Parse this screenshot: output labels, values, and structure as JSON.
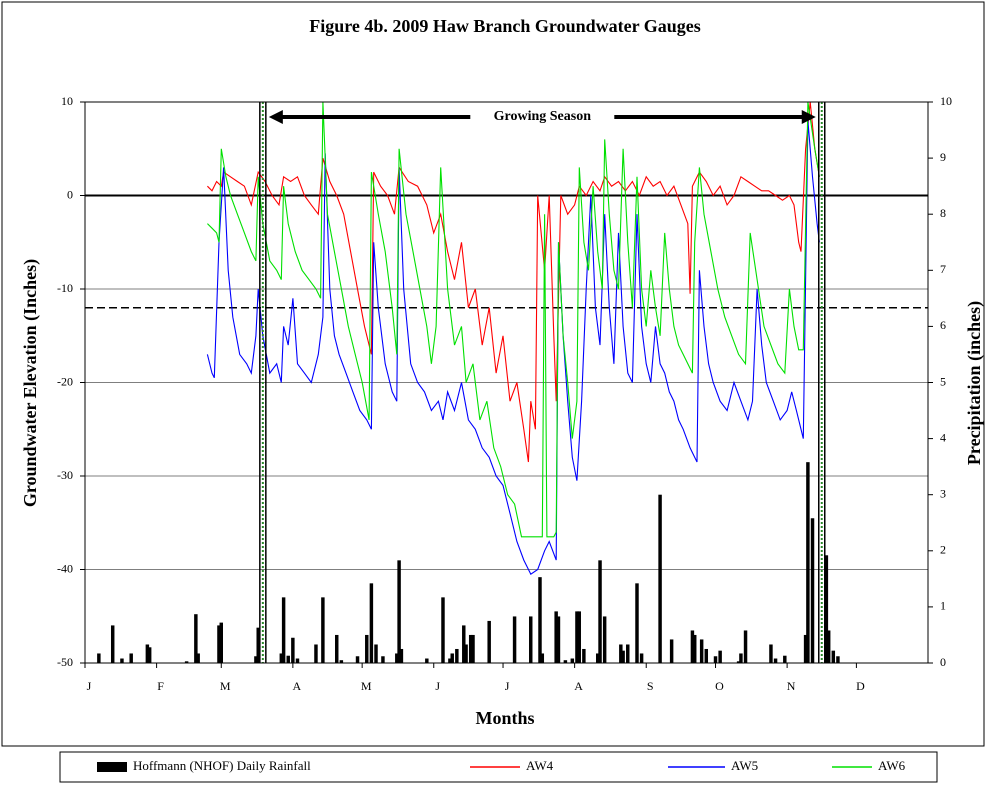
{
  "chart_data": {
    "type": "line",
    "title": "Figure 4b.  2009 Haw Branch Groundwater Gauges",
    "xlabel": "Months",
    "ylabel": "Groundwater Elevation (Inches)",
    "y2label": "Precipitation (inches)",
    "annotation": "Growing Season",
    "growing_season": [
      77,
      319
    ],
    "reference_lines": [
      0,
      -12
    ],
    "xlim": [
      0,
      365
    ],
    "xticks": [
      {
        "value": 0,
        "label": "J"
      },
      {
        "value": 31,
        "label": "F"
      },
      {
        "value": 59,
        "label": "M"
      },
      {
        "value": 90,
        "label": "A"
      },
      {
        "value": 120,
        "label": "M"
      },
      {
        "value": 151,
        "label": "J"
      },
      {
        "value": 181,
        "label": "J"
      },
      {
        "value": 212,
        "label": "A"
      },
      {
        "value": 243,
        "label": "S"
      },
      {
        "value": 273,
        "label": "O"
      },
      {
        "value": 304,
        "label": "N"
      },
      {
        "value": 334,
        "label": "D"
      }
    ],
    "ylim": [
      -50,
      10
    ],
    "yticks": [
      -50,
      -40,
      -30,
      -20,
      -10,
      0,
      10
    ],
    "y2lim": [
      0,
      10
    ],
    "y2ticks": [
      0,
      1,
      2,
      3,
      4,
      5,
      6,
      7,
      8,
      9,
      10
    ],
    "grid": true,
    "legend": "bottom",
    "series": [
      {
        "name": "Hoffmann (NHOF) Daily Rainfall",
        "type": "bar",
        "axis": "y2",
        "color": "#000000",
        "x": [
          6,
          12,
          16,
          20,
          27,
          28,
          44,
          48,
          49,
          58,
          59,
          74,
          75,
          85,
          86,
          88,
          90,
          92,
          100,
          103,
          109,
          111,
          118,
          122,
          124,
          126,
          129,
          135,
          136,
          137,
          148,
          155,
          158,
          159,
          161,
          164,
          165,
          167,
          168,
          175,
          186,
          193,
          197,
          198,
          204,
          205,
          208,
          211,
          213,
          214,
          216,
          222,
          223,
          225,
          232,
          233,
          235,
          239,
          241,
          249,
          254,
          263,
          264,
          267,
          269,
          273,
          275,
          283,
          284,
          286,
          297,
          299,
          303,
          312,
          313,
          315,
          321,
          322,
          324,
          326
        ],
        "values": [
          0.17,
          0.67,
          0.08,
          0.17,
          0.33,
          0.28,
          0.03,
          0.87,
          0.17,
          0.67,
          0.72,
          0.12,
          0.63,
          0.17,
          1.17,
          0.13,
          0.45,
          0.08,
          0.33,
          1.17,
          0.5,
          0.05,
          0.12,
          0.5,
          1.42,
          0.33,
          0.12,
          0.17,
          1.83,
          0.25,
          0.08,
          1.17,
          0.08,
          0.17,
          0.25,
          0.67,
          0.33,
          0.5,
          0.5,
          0.75,
          0.83,
          0.83,
          1.53,
          0.17,
          0.92,
          0.83,
          0.05,
          0.08,
          0.92,
          0.92,
          0.25,
          0.17,
          1.83,
          0.83,
          0.33,
          0.22,
          0.33,
          1.42,
          0.17,
          3.0,
          0.42,
          0.58,
          0.5,
          0.42,
          0.25,
          0.12,
          0.22,
          0.03,
          0.17,
          0.58,
          0.33,
          0.08,
          0.13,
          0.5,
          3.58,
          2.58,
          1.92,
          0.58,
          0.22,
          0.12
        ]
      },
      {
        "name": "AW4",
        "color": "#ff0000",
        "x": [
          53,
          55,
          57,
          59,
          60,
          63,
          66,
          69,
          72,
          75,
          78,
          81,
          84,
          86,
          89,
          92,
          95,
          98,
          101,
          103,
          106,
          109,
          112,
          115,
          118,
          121,
          124,
          125,
          128,
          131,
          134,
          136,
          140,
          144,
          148,
          151,
          154,
          157,
          160,
          163,
          166,
          169,
          172,
          175,
          178,
          181,
          184,
          187,
          190,
          192,
          193,
          195,
          196,
          199,
          201,
          203,
          204,
          206,
          209,
          212,
          214,
          217,
          220,
          223,
          225,
          228,
          231,
          234,
          237,
          240,
          243,
          246,
          249,
          252,
          255,
          258,
          261,
          262,
          263,
          266,
          269,
          272,
          275,
          278,
          281,
          284,
          287,
          290,
          293,
          296,
          299,
          302,
          305,
          307,
          309,
          310,
          312,
          314,
          316,
          318
        ],
        "values": [
          1,
          0.5,
          1.5,
          1,
          2.5,
          2,
          1.5,
          1,
          -1,
          2.5,
          1.5,
          0,
          -1,
          2,
          1.5,
          2,
          0,
          -1,
          -2,
          4,
          1.5,
          0,
          -2,
          -6,
          -10,
          -14,
          -17,
          2.5,
          1,
          0,
          -2,
          3,
          1.5,
          1,
          -1,
          -4,
          -2,
          -6,
          -9,
          -5,
          -12,
          -10,
          -16,
          -12,
          -19,
          -15,
          -22,
          -20,
          -25,
          -28.5,
          -22,
          -25,
          0,
          -8,
          0,
          -15,
          -22,
          0,
          -2,
          -1,
          1,
          0,
          1.5,
          0.5,
          2,
          1,
          1.5,
          0.5,
          1.5,
          0,
          2,
          1,
          1.5,
          0,
          1,
          -1,
          -3,
          -10.5,
          1,
          2.5,
          1.5,
          0,
          1,
          -1,
          0,
          2,
          1.5,
          1,
          0.5,
          0.5,
          0,
          -0.5,
          0,
          -1,
          -5,
          -6,
          5,
          10,
          5,
          2
        ]
      },
      {
        "name": "AW5",
        "color": "#0000ff",
        "x": [
          53,
          55,
          56,
          58,
          60,
          62,
          64,
          67,
          70,
          72,
          74,
          75,
          77,
          80,
          83,
          85,
          86,
          88,
          90,
          92,
          95,
          98,
          101,
          103,
          104,
          106,
          108,
          110,
          113,
          116,
          119,
          122,
          124,
          125,
          127,
          130,
          133,
          135,
          136,
          138,
          141,
          144,
          147,
          150,
          153,
          155,
          157,
          160,
          163,
          166,
          169,
          172,
          175,
          178,
          181,
          184,
          187,
          190,
          193,
          196,
          199,
          201,
          204,
          205,
          207,
          209,
          211,
          213,
          215,
          217,
          219,
          221,
          223,
          225,
          227,
          229,
          231,
          233,
          235,
          237,
          239,
          241,
          243,
          245,
          247,
          249,
          251,
          253,
          255,
          257,
          259,
          262,
          265,
          266,
          268,
          270,
          272,
          275,
          278,
          281,
          284,
          287,
          289,
          291,
          293,
          295,
          298,
          301,
          304,
          306,
          308,
          310,
          311,
          313,
          315,
          317,
          318
        ],
        "values": [
          -17,
          -19,
          -19.5,
          -5,
          3,
          -8,
          -13,
          -17,
          -18,
          -19,
          -15,
          -10,
          -15,
          -19,
          -18,
          -20,
          -14,
          -16,
          -11,
          -18,
          -19,
          -20,
          -17,
          -13,
          4.5,
          -10,
          -15,
          -17,
          -19,
          -21,
          -23,
          -24,
          -25,
          -5,
          -12,
          -18,
          -21,
          -22,
          3,
          -10,
          -18,
          -20,
          -21,
          -23,
          -22,
          -24,
          -21,
          -23,
          -20,
          -24,
          -25,
          -27,
          -28,
          -30,
          -31,
          -34,
          -37,
          -39,
          -40.5,
          -40,
          -38,
          -37,
          -39,
          -5,
          -15,
          -22,
          -28,
          -30.5,
          -22,
          -10,
          0,
          -12,
          -16,
          -2,
          -12,
          -18,
          -4,
          -14,
          -19,
          -20,
          -2,
          -14,
          -18,
          -20,
          -14,
          -18,
          -19,
          -21,
          -22,
          -24,
          -25,
          -27,
          -28.5,
          -8,
          -14,
          -18,
          -20,
          -22,
          -23,
          -20,
          -22,
          -24,
          -22,
          -10,
          -16,
          -20,
          -22,
          -24,
          -23,
          -21,
          -23,
          -25,
          -26,
          8,
          2,
          -3,
          -5
        ]
      },
      {
        "name": "AW6",
        "color": "#00e000",
        "x": [
          53,
          55,
          57,
          58,
          59,
          61,
          63,
          66,
          69,
          72,
          74,
          75,
          77,
          80,
          83,
          85,
          86,
          88,
          91,
          94,
          97,
          100,
          102,
          103,
          105,
          108,
          111,
          114,
          117,
          120,
          123,
          124,
          127,
          130,
          133,
          135,
          136,
          139,
          142,
          145,
          148,
          150,
          152,
          154,
          157,
          160,
          163,
          165,
          168,
          171,
          174,
          177,
          180,
          183,
          186,
          189,
          192,
          195,
          198,
          199,
          200,
          203,
          204,
          205,
          207,
          209,
          211,
          213,
          214,
          216,
          218,
          220,
          222,
          224,
          225,
          227,
          229,
          231,
          233,
          235,
          237,
          239,
          241,
          243,
          245,
          247,
          249,
          251,
          253,
          255,
          257,
          259,
          261,
          263,
          264,
          266,
          268,
          271,
          274,
          277,
          280,
          283,
          286,
          288,
          291,
          294,
          297,
          300,
          303,
          305,
          307,
          309,
          311,
          313,
          316,
          318
        ],
        "values": [
          -3,
          -3.5,
          -4,
          -5,
          5,
          2,
          0,
          -2,
          -4,
          -6,
          -7,
          2,
          -3,
          -7,
          -8,
          -9,
          1,
          -3,
          -6,
          -8,
          -9,
          -10,
          -11,
          10,
          -2,
          -6,
          -10,
          -14,
          -17,
          -20,
          -24,
          2.5,
          -2,
          -6,
          -12,
          -17,
          5,
          -2,
          -6,
          -10,
          -14,
          -18,
          -14,
          3,
          -10,
          -16,
          -14,
          -20,
          -18,
          -24,
          -22,
          -27,
          -29,
          -32,
          -33,
          -36.5,
          -36.5,
          -36.5,
          -36.5,
          -2,
          -36.5,
          -36.5,
          -36,
          -5,
          -15,
          -20,
          -26,
          -22,
          3,
          -5,
          -8,
          1,
          -6,
          -10,
          6,
          -2,
          -8,
          -10,
          5,
          -5,
          -12,
          2,
          -10,
          -14,
          -8,
          -12,
          -15,
          -4,
          -10,
          -14,
          -16,
          -17,
          -18,
          -19,
          -5,
          3,
          -2,
          -6,
          -10,
          -13,
          -15,
          -17,
          -18,
          -4,
          -9,
          -14,
          -16,
          -18,
          -19,
          -10,
          -14,
          -16.5,
          -16.5,
          10,
          5,
          2
        ]
      }
    ]
  }
}
